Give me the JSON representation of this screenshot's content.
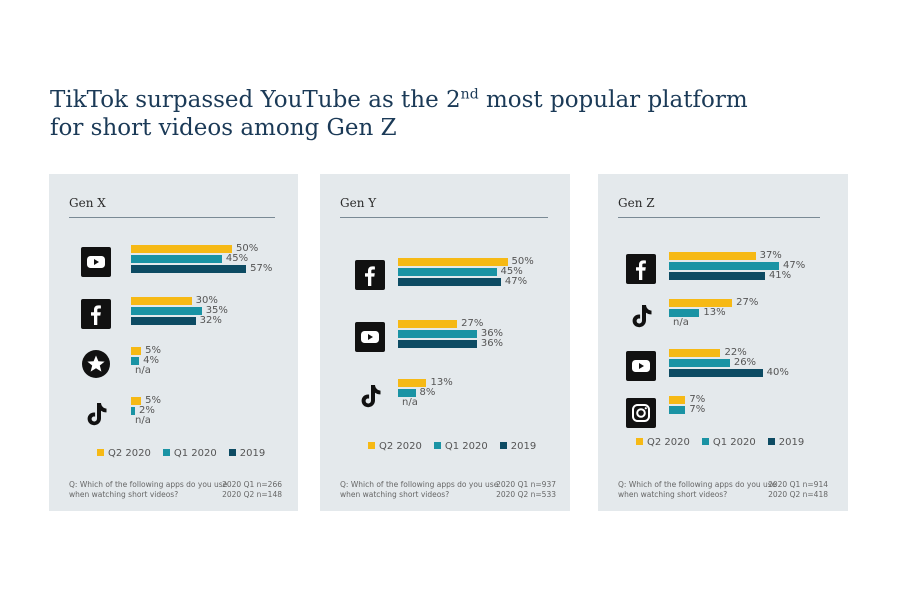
{
  "title": {
    "part1": "TikTok surpassed YouTube as the 2",
    "sup": "nd",
    "part2": " most popular platform",
    "line2": "for short videos among Gen Z"
  },
  "colors": {
    "Q2 2020": "#f6b915",
    "Q1 2020": "#1a93a4",
    "2019": "#0d4b63"
  },
  "chart_data": [
    {
      "type": "bar",
      "orientation": "horizontal",
      "title": "Gen X",
      "xlim": [
        0,
        100
      ],
      "series_names": [
        "Q2 2020",
        "Q1 2020",
        "2019"
      ],
      "categories": [
        {
          "icon": "youtube-icon",
          "values": [
            50,
            45,
            57
          ],
          "labels": [
            "50%",
            "45%",
            "57%"
          ]
        },
        {
          "icon": "facebook-icon",
          "values": [
            30,
            35,
            32
          ],
          "labels": [
            "30%",
            "35%",
            "32%"
          ]
        },
        {
          "icon": "star-icon",
          "values": [
            5,
            4,
            null
          ],
          "labels": [
            "5%",
            "4%",
            "n/a"
          ]
        },
        {
          "icon": "tiktok-icon",
          "values": [
            5,
            2,
            null
          ],
          "labels": [
            "5%",
            "2%",
            "n/a"
          ]
        }
      ],
      "legend": [
        {
          "label": "Q2 2020",
          "color": "#f6b915"
        },
        {
          "label": "Q1 2020",
          "color": "#1a93a4"
        },
        {
          "label": "2019",
          "color": "#0d4b63"
        }
      ],
      "question": "Q: Which of the following apps do you use when  watching short videos?",
      "n_line1": "2020  Q1  n=266",
      "n_line2": "2020  Q2  n=148"
    },
    {
      "type": "bar",
      "orientation": "horizontal",
      "title": "Gen Y",
      "xlim": [
        0,
        100
      ],
      "series_names": [
        "Q2 2020",
        "Q1 2020",
        "2019"
      ],
      "categories": [
        {
          "icon": "facebook-icon",
          "values": [
            50,
            45,
            47
          ],
          "labels": [
            "50%",
            "45%",
            "47%"
          ]
        },
        {
          "icon": "youtube-icon",
          "values": [
            27,
            36,
            36
          ],
          "labels": [
            "27%",
            "36%",
            "36%"
          ]
        },
        {
          "icon": "tiktok-icon",
          "values": [
            13,
            8,
            null
          ],
          "labels": [
            "13%",
            "8%",
            "n/a"
          ]
        }
      ],
      "legend": [
        {
          "label": "Q2 2020",
          "color": "#f6b915"
        },
        {
          "label": "Q1 2020",
          "color": "#1a93a4"
        },
        {
          "label": "2019",
          "color": "#0d4b63"
        }
      ],
      "question": "Q: Which of the following apps do you use when  watching short videos?",
      "n_line1": "2020  Q1  n=937",
      "n_line2": "2020  Q2  n=533"
    },
    {
      "type": "bar",
      "orientation": "horizontal",
      "title": "Gen Z",
      "xlim": [
        0,
        100
      ],
      "series_names": [
        "Q2 2020",
        "Q1 2020",
        "2019"
      ],
      "categories": [
        {
          "icon": "facebook-icon",
          "values": [
            37,
            47,
            41
          ],
          "labels": [
            "37%",
            "47%",
            "41%"
          ]
        },
        {
          "icon": "tiktok-icon",
          "values": [
            27,
            13,
            null
          ],
          "labels": [
            "27%",
            "13%",
            "n/a"
          ]
        },
        {
          "icon": "youtube-icon",
          "values": [
            22,
            26,
            40
          ],
          "labels": [
            "22%",
            "26%",
            "40%"
          ]
        },
        {
          "icon": "instagram-icon",
          "values": [
            7,
            7,
            null
          ],
          "labels": [
            "7%",
            "7%",
            ""
          ]
        }
      ],
      "legend": [
        {
          "label": "Q2 2020",
          "color": "#f6b915"
        },
        {
          "label": "Q1 2020",
          "color": "#1a93a4"
        },
        {
          "label": "2019",
          "color": "#0d4b63"
        }
      ],
      "question": "Q: Which of the following apps do you use when  watching short videos?",
      "n_line1": "2020  Q1  n=914",
      "n_line2": "2020  Q2  n=418"
    }
  ]
}
